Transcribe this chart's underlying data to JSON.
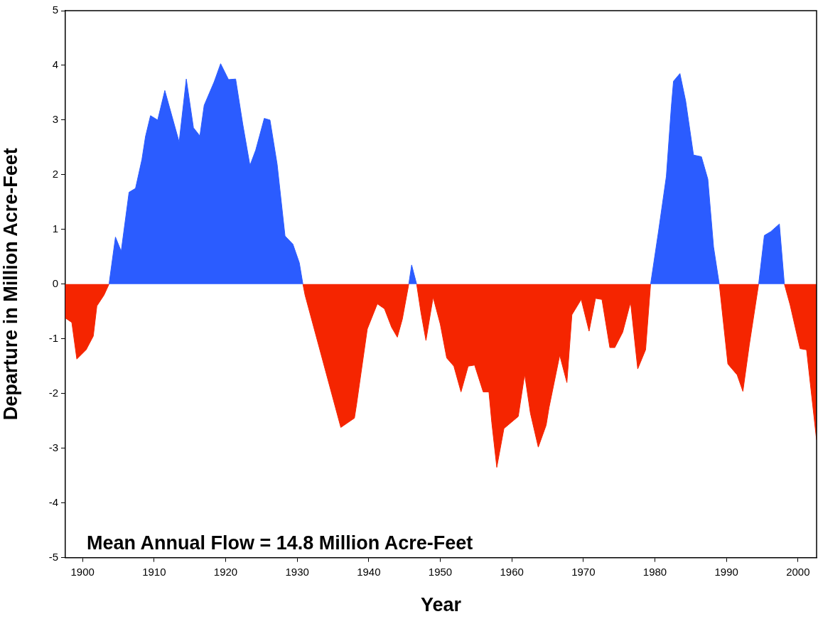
{
  "chart_data": {
    "type": "area",
    "xlabel": "Year",
    "ylabel": "Departure in Million Acre-Feet",
    "annotations": [
      "Mean Annual Flow = 14.8 Million Acre-Feet"
    ],
    "xlim": [
      1897.6,
      2002.6
    ],
    "xticks": [
      1900,
      1910,
      1920,
      1930,
      1940,
      1950,
      1960,
      1970,
      1980,
      1990,
      2000
    ],
    "ylim": [
      -5,
      5
    ],
    "yticks": [
      -5,
      -4,
      -3,
      -2,
      -1,
      0,
      1,
      2,
      3,
      4,
      5
    ],
    "grid": false,
    "legend": false,
    "x": [
      1897.6,
      1898.5,
      1899.2,
      1900.5,
      1901.5,
      1902,
      1903,
      1903.7,
      1904.6,
      1905.4,
      1906.5,
      1907.4,
      1908.3,
      1908.8,
      1909.5,
      1910.5,
      1911.5,
      1913.5,
      1914.5,
      1915.5,
      1916.4,
      1917,
      1918.4,
      1919.3,
      1920.4,
      1921.4,
      1922.4,
      1923.4,
      1924.2,
      1925.4,
      1926.2,
      1927.2,
      1928.3,
      1929.4,
      1930.3,
      1930.8,
      1931.1,
      1936.1,
      1938,
      1938.3,
      1939.8,
      1941.2,
      1942.2,
      1943.2,
      1944,
      1944.7,
      1945.6,
      1946,
      1946.7,
      1947.3,
      1948,
      1949,
      1950,
      1950.9,
      1951.9,
      1952.9,
      1953.9,
      1954.8,
      1956,
      1956.8,
      1957.2,
      1957.9,
      1958.9,
      1959.9,
      1960.9,
      1961.8,
      1962.6,
      1963.7,
      1964.8,
      1965.2,
      1966.7,
      1967.7,
      1968.4,
      1969.7,
      1970.8,
      1971.7,
      1972.6,
      1973.7,
      1974.4,
      1975.5,
      1976.6,
      1977.6,
      1978.7,
      1979.4,
      1980.5,
      1981.6,
      1982.3,
      1982.6,
      1983.5,
      1984.3,
      1985.4,
      1986.5,
      1987.4,
      1988.2,
      1989,
      1990.2,
      1991.5,
      1992.3,
      1993.2,
      1994.5,
      1995.3,
      1996.2,
      1997.4,
      1998.1,
      1998.9,
      2000.3,
      2001.2,
      2002.6
    ],
    "series": [
      {
        "color": "#2b5cff",
        "values": [
          null,
          null,
          null,
          null,
          null,
          null,
          null,
          0,
          0.86,
          0.6,
          1.68,
          1.75,
          2.28,
          2.7,
          3.08,
          3.0,
          3.54,
          2.6,
          3.75,
          2.86,
          2.71,
          3.27,
          3.7,
          4.03,
          3.74,
          3.75,
          2.92,
          2.17,
          2.45,
          3.03,
          3.0,
          2.19,
          0.88,
          0.73,
          0.39,
          0,
          null,
          null,
          null,
          null,
          null,
          null,
          null,
          null,
          null,
          null,
          0,
          0.35,
          0,
          null,
          null,
          null,
          null,
          null,
          null,
          null,
          null,
          null,
          null,
          null,
          null,
          null,
          null,
          null,
          null,
          null,
          null,
          null,
          null,
          null,
          null,
          null,
          null,
          null,
          null,
          null,
          null,
          null,
          null,
          null,
          null,
          null,
          null,
          0,
          0.96,
          1.97,
          3.25,
          3.71,
          3.85,
          3.35,
          2.36,
          2.33,
          1.92,
          0.68,
          0,
          null,
          null,
          null,
          null,
          0,
          0.89,
          0.96,
          1.1,
          0,
          null,
          null,
          null,
          null
        ]
      },
      {
        "color": "#f52500",
        "values": [
          -0.62,
          -0.7,
          -1.37,
          -1.2,
          -0.95,
          -0.4,
          -0.2,
          0,
          null,
          null,
          null,
          null,
          null,
          null,
          null,
          null,
          null,
          null,
          null,
          null,
          null,
          null,
          null,
          null,
          null,
          null,
          null,
          null,
          null,
          null,
          null,
          null,
          null,
          null,
          null,
          0,
          -0.2,
          -2.62,
          -2.45,
          -2.2,
          -0.82,
          -0.36,
          -0.45,
          -0.79,
          -0.97,
          -0.64,
          0,
          null,
          0,
          -0.52,
          -1.03,
          -0.24,
          -0.73,
          -1.35,
          -1.5,
          -1.97,
          -1.5,
          -1.48,
          -1.97,
          -1.97,
          -2.53,
          -3.35,
          -2.64,
          -2.53,
          -2.42,
          -1.65,
          -2.36,
          -2.98,
          -2.58,
          -2.26,
          -1.3,
          -1.8,
          -0.56,
          -0.28,
          -0.86,
          -0.26,
          -0.28,
          -1.16,
          -1.16,
          -0.88,
          -0.33,
          -1.55,
          -1.2,
          0,
          null,
          null,
          null,
          null,
          null,
          null,
          null,
          null,
          null,
          null,
          0,
          -1.46,
          -1.66,
          -1.96,
          -1.11,
          0,
          null,
          null,
          null,
          0,
          -0.38,
          -1.18,
          -1.2,
          -2.85
        ]
      }
    ]
  }
}
